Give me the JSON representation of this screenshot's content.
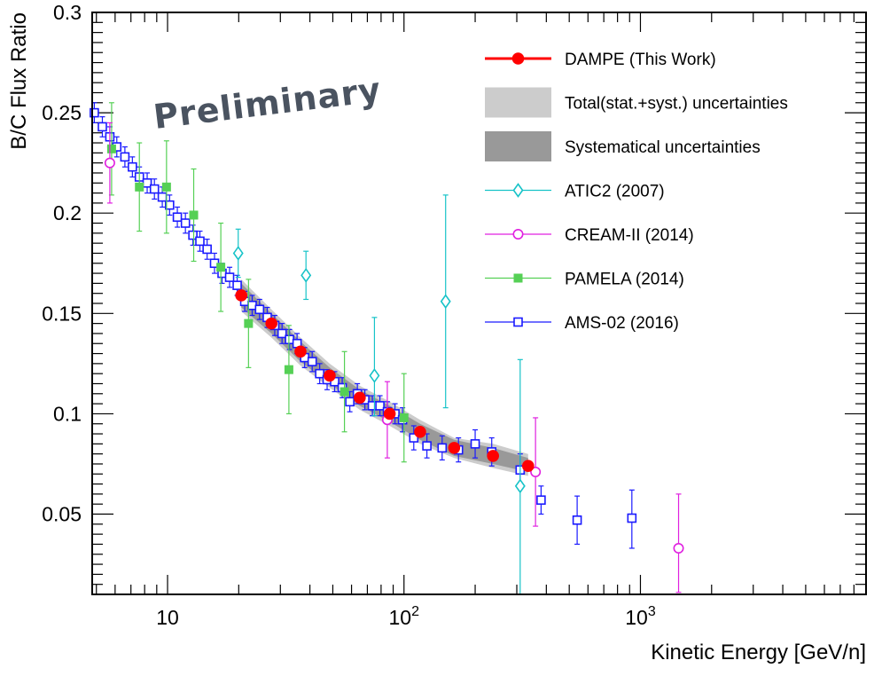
{
  "chart_data": {
    "type": "scatter",
    "title": "",
    "xlabel": "Kinetic Energy [GeV/n]",
    "ylabel": "B/C Flux Ratio",
    "xscale": "log",
    "xlim": [
      4.8,
      9000
    ],
    "ylim": [
      0.01,
      0.3
    ],
    "x_tick_labels": [
      "10",
      "10",
      "10"
    ],
    "x_tick_exponents": [
      "",
      "2",
      "3"
    ],
    "y_tick_labels": [
      "0.05",
      "0.1",
      "0.15",
      "0.2",
      "0.25",
      "0.3"
    ],
    "watermark": "Preliminary",
    "legend_position": "top-right",
    "series": [
      {
        "name": "DAMPE (This Work)",
        "marker": "filled-circle",
        "color": "#ff0000",
        "x": [
          20.5,
          27.5,
          36.5,
          48.5,
          65,
          87,
          117,
          163,
          238,
          335
        ],
        "y": [
          0.159,
          0.145,
          0.131,
          0.119,
          0.108,
          0.1,
          0.091,
          0.083,
          0.079,
          0.074
        ]
      },
      {
        "name": "ATIC2 (2007)",
        "marker": "open-diamond",
        "color": "#17c3c8",
        "x": [
          19.9,
          38.5,
          75,
          150,
          310
        ],
        "y": [
          0.18,
          0.169,
          0.119,
          0.156,
          0.064
        ],
        "yerr_low": [
          0.012,
          0.012,
          0.02,
          0.053,
          0.054
        ],
        "yerr_high": [
          0.012,
          0.012,
          0.029,
          0.053,
          0.063
        ]
      },
      {
        "name": "CREAM-II (2014)",
        "marker": "open-circle",
        "color": "#e020e0",
        "x": [
          5.7,
          85,
          360,
          1450
        ],
        "y": [
          0.225,
          0.097,
          0.071,
          0.033
        ],
        "yerr_low": [
          0.02,
          0.019,
          0.027,
          0.022
        ],
        "yerr_high": [
          0.02,
          0.019,
          0.027,
          0.027
        ]
      },
      {
        "name": "PAMELA (2014)",
        "marker": "filled-square",
        "color": "#55d055",
        "x": [
          5.8,
          7.6,
          9.9,
          12.9,
          16.8,
          22,
          32.6,
          56,
          100
        ],
        "y": [
          0.232,
          0.213,
          0.213,
          0.199,
          0.173,
          0.145,
          0.122,
          0.111,
          0.098
        ],
        "yerr_low": [
          0.023,
          0.022,
          0.023,
          0.023,
          0.022,
          0.022,
          0.022,
          0.02,
          0.022
        ],
        "yerr_high": [
          0.023,
          0.022,
          0.023,
          0.023,
          0.022,
          0.022,
          0.022,
          0.02,
          0.022
        ]
      },
      {
        "name": "AMS-02 (2016)",
        "marker": "open-square",
        "color": "#1a1aff",
        "x": [
          4.9,
          5.3,
          5.7,
          6.1,
          6.6,
          7.1,
          7.6,
          8.2,
          8.8,
          9.5,
          10.2,
          11.0,
          11.9,
          12.8,
          13.7,
          14.7,
          15.8,
          17.0,
          18.3,
          19.7,
          21.2,
          22.8,
          24.5,
          26.4,
          28.4,
          30.5,
          32.8,
          35.3,
          38.0,
          40.9,
          44.0,
          47.3,
          50.9,
          54.8,
          59.0,
          63.5,
          68.3,
          73.5,
          79.1,
          85.1,
          91.6,
          98.6,
          110,
          125,
          145,
          170,
          200,
          235,
          310,
          380,
          540,
          920
        ],
        "y": [
          0.25,
          0.243,
          0.238,
          0.233,
          0.228,
          0.223,
          0.218,
          0.215,
          0.212,
          0.208,
          0.204,
          0.198,
          0.195,
          0.189,
          0.186,
          0.182,
          0.175,
          0.17,
          0.168,
          0.164,
          0.156,
          0.154,
          0.152,
          0.148,
          0.144,
          0.14,
          0.137,
          0.135,
          0.128,
          0.126,
          0.12,
          0.117,
          0.116,
          0.113,
          0.106,
          0.11,
          0.107,
          0.104,
          0.104,
          0.101,
          0.1,
          0.097,
          0.088,
          0.084,
          0.083,
          0.082,
          0.085,
          0.081,
          0.072,
          0.057,
          0.047,
          0.048
        ],
        "yerr_low": [
          0.005,
          0.005,
          0.005,
          0.005,
          0.005,
          0.005,
          0.005,
          0.005,
          0.005,
          0.005,
          0.005,
          0.005,
          0.005,
          0.005,
          0.005,
          0.005,
          0.005,
          0.005,
          0.005,
          0.005,
          0.005,
          0.005,
          0.005,
          0.005,
          0.005,
          0.005,
          0.005,
          0.005,
          0.005,
          0.005,
          0.005,
          0.005,
          0.005,
          0.005,
          0.005,
          0.005,
          0.005,
          0.005,
          0.005,
          0.005,
          0.005,
          0.006,
          0.006,
          0.006,
          0.006,
          0.006,
          0.007,
          0.007,
          0.008,
          0.007,
          0.012,
          0.015
        ],
        "yerr_high": [
          0.005,
          0.005,
          0.005,
          0.005,
          0.005,
          0.005,
          0.005,
          0.005,
          0.005,
          0.005,
          0.005,
          0.005,
          0.005,
          0.005,
          0.005,
          0.005,
          0.005,
          0.005,
          0.005,
          0.005,
          0.005,
          0.005,
          0.005,
          0.005,
          0.005,
          0.005,
          0.005,
          0.005,
          0.005,
          0.005,
          0.005,
          0.005,
          0.005,
          0.005,
          0.005,
          0.005,
          0.005,
          0.005,
          0.005,
          0.005,
          0.005,
          0.006,
          0.006,
          0.006,
          0.006,
          0.006,
          0.007,
          0.007,
          0.008,
          0.007,
          0.012,
          0.014
        ]
      }
    ],
    "bands": [
      {
        "name": "Total(stat.+syst.) uncertainties",
        "color": "#cccccc",
        "x": [
          20.5,
          27.5,
          36.5,
          48.5,
          65,
          87,
          117,
          163,
          238,
          335
        ],
        "y_low": [
          0.151,
          0.138,
          0.124,
          0.113,
          0.102,
          0.094,
          0.085,
          0.078,
          0.073,
          0.069
        ],
        "y_high": [
          0.167,
          0.152,
          0.138,
          0.125,
          0.114,
          0.106,
          0.097,
          0.088,
          0.085,
          0.08
        ]
      },
      {
        "name": "Systematical uncertainties",
        "color": "#999999",
        "x": [
          20.5,
          27.5,
          36.5,
          48.5,
          65,
          87,
          117,
          163,
          238,
          335
        ],
        "y_low": [
          0.153,
          0.14,
          0.126,
          0.115,
          0.104,
          0.096,
          0.087,
          0.079,
          0.075,
          0.071
        ],
        "y_high": [
          0.165,
          0.15,
          0.136,
          0.123,
          0.112,
          0.104,
          0.095,
          0.087,
          0.083,
          0.078
        ]
      }
    ]
  }
}
